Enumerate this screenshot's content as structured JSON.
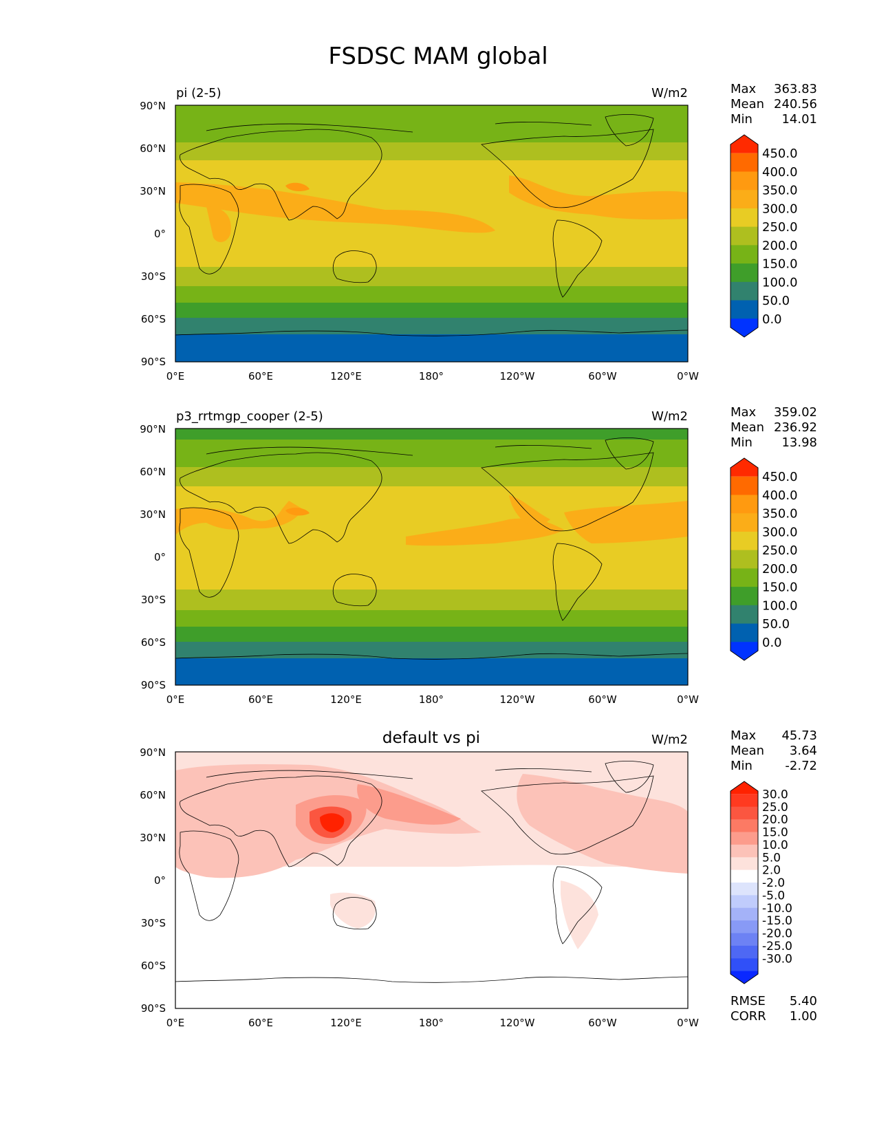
{
  "figure": {
    "title": "FSDSC MAM global"
  },
  "lat_ticks": [
    "90°N",
    "60°N",
    "30°N",
    "0°",
    "30°S",
    "60°S",
    "90°S"
  ],
  "lon_ticks": [
    "0°E",
    "60°E",
    "120°E",
    "180°",
    "120°W",
    "60°W",
    "0°W"
  ],
  "panels": [
    {
      "left_title": "pi (2-5)",
      "center_title": "",
      "units": "W/m2",
      "stats": [
        {
          "label": "Max",
          "value": "363.83"
        },
        {
          "label": "Mean",
          "value": "240.56"
        },
        {
          "label": "Min",
          "value": "14.01"
        }
      ],
      "colorbar_ticks": [
        "450.0",
        "400.0",
        "350.0",
        "300.0",
        "250.0",
        "200.0",
        "150.0",
        "100.0",
        "50.0",
        "0.0"
      ],
      "colors": [
        "#ff2a00",
        "#ff6a00",
        "#ff9a10",
        "#fbad18",
        "#e8cc24",
        "#aebf1f",
        "#77b317",
        "#3f9e2a",
        "#31826e",
        "#0061b0",
        "#0033ff"
      ]
    },
    {
      "left_title": "p3_rrtmgp_cooper (2-5)",
      "center_title": "",
      "units": "W/m2",
      "stats": [
        {
          "label": "Max",
          "value": "359.02"
        },
        {
          "label": "Mean",
          "value": "236.92"
        },
        {
          "label": "Min",
          "value": "13.98"
        }
      ],
      "colorbar_ticks": [
        "450.0",
        "400.0",
        "350.0",
        "300.0",
        "250.0",
        "200.0",
        "150.0",
        "100.0",
        "50.0",
        "0.0"
      ],
      "colors": [
        "#ff2a00",
        "#ff6a00",
        "#ff9a10",
        "#fbad18",
        "#e8cc24",
        "#aebf1f",
        "#77b317",
        "#3f9e2a",
        "#31826e",
        "#0061b0",
        "#0033ff"
      ]
    },
    {
      "left_title": "",
      "center_title": "default vs pi",
      "units": "W/m2",
      "stats": [
        {
          "label": "Max",
          "value": "45.73"
        },
        {
          "label": "Mean",
          "value": "3.64"
        },
        {
          "label": "Min",
          "value": "-2.72"
        }
      ],
      "colorbar_ticks": [
        "30.0",
        "25.0",
        "20.0",
        "15.0",
        "10.0",
        "5.0",
        "2.0",
        "-2.0",
        "-5.0",
        "-10.0",
        "-15.0",
        "-20.0",
        "-25.0",
        "-30.0"
      ],
      "colors": [
        "#ff2200",
        "#ff3a20",
        "#fb5640",
        "#fc7a64",
        "#fc9c8c",
        "#fcc2b8",
        "#fde2dc",
        "#ffffff",
        "#dde4fc",
        "#c0ccfc",
        "#a4b2f8",
        "#889af6",
        "#6d82f4",
        "#4e68f4",
        "#3050f8",
        "#0a28ff"
      ],
      "rmse_label": "RMSE",
      "rmse_value": "5.40",
      "corr_label": "CORR",
      "corr_value": "1.00"
    }
  ]
}
